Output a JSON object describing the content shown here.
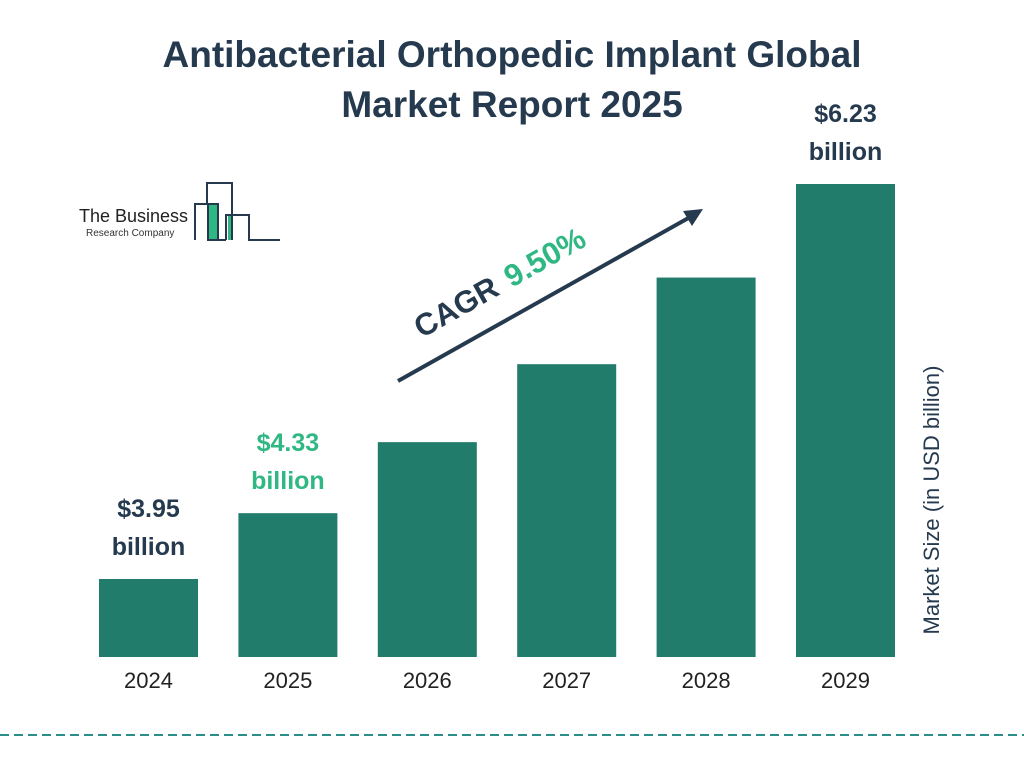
{
  "title_lines": [
    "Antibacterial Orthopedic Implant Global",
    "Market Report 2025"
  ],
  "logo": {
    "line1": "The Business",
    "line2": "Research Company"
  },
  "colors": {
    "bar": "#217c6c",
    "text": "#253a4e",
    "highlight": "#2fb784",
    "dash": "#2a8f8a"
  },
  "cagr": {
    "label": "CAGR",
    "value": "9.50%"
  },
  "chart_data": {
    "type": "bar",
    "categories": [
      "2024",
      "2025",
      "2026",
      "2027",
      "2028",
      "2029"
    ],
    "values": [
      3.95,
      4.33,
      4.74,
      5.19,
      5.69,
      6.23
    ],
    "data_labels": [
      {
        "index": 0,
        "line1": "$3.95",
        "line2": "billion",
        "color": "#253a4e"
      },
      {
        "index": 1,
        "line1": "$4.33",
        "line2": "billion",
        "color": "#2fb784"
      },
      {
        "index": 5,
        "line1": "$6.23",
        "line2": "billion",
        "color": "#253a4e"
      }
    ],
    "ylabel": "Market Size (in USD billion)",
    "xlabel": "",
    "grid": false
  }
}
